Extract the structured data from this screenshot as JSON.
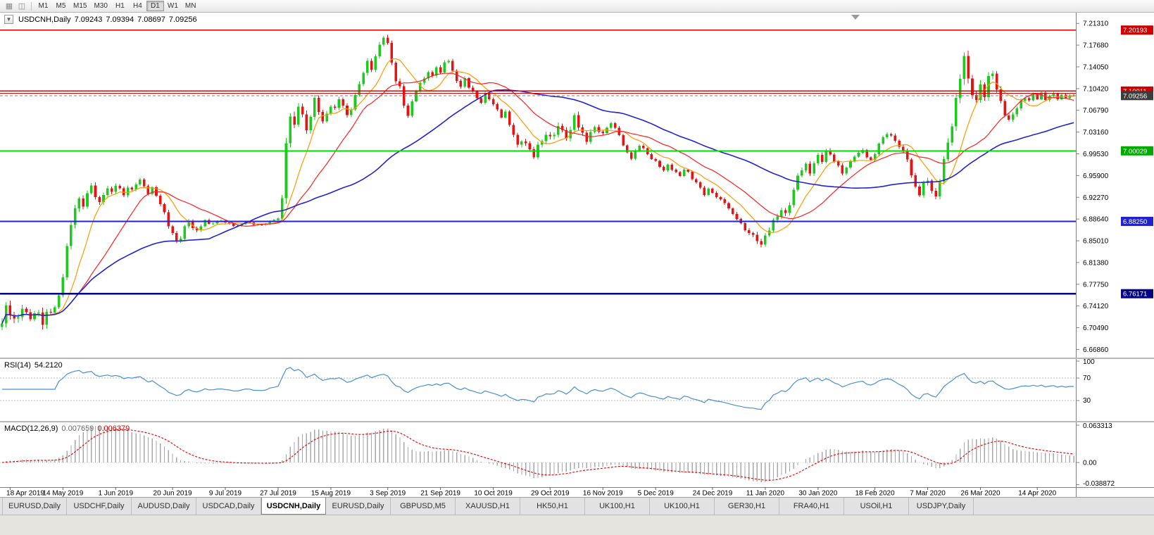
{
  "colors": {
    "up": "#1fca1f",
    "down": "#e41414",
    "ma_fast": "#ff9900",
    "ma_mid": "#ff2020",
    "ma_slow": "#2424cc",
    "rsi": "#4a8fd0",
    "rsi_level": "#bbbbbb",
    "macd_hist": "#a8a8a8",
    "macd_signal": "#e00000",
    "axis_text": "#000000",
    "axis_line": "#808080"
  },
  "toolbar": {
    "icons": [
      {
        "name": "chart-grid-icon",
        "glyph": "▦"
      },
      {
        "name": "chart-window-icon",
        "glyph": "◫"
      }
    ],
    "timeframes": [
      {
        "label": "M1",
        "active": false
      },
      {
        "label": "M5",
        "active": false
      },
      {
        "label": "M15",
        "active": false
      },
      {
        "label": "M30",
        "active": false
      },
      {
        "label": "H1",
        "active": false
      },
      {
        "label": "H4",
        "active": false
      },
      {
        "label": "D1",
        "active": true
      },
      {
        "label": "W1",
        "active": false
      },
      {
        "label": "MN",
        "active": false
      }
    ]
  },
  "chart": {
    "header": {
      "collapse_glyph": "▼",
      "symbol": "USDCNH,Daily",
      "open": "7.09243",
      "high": "7.09394",
      "low": "7.08697",
      "close": "7.09256"
    }
  },
  "price_axis": {
    "ticks": [
      "7.21310",
      "7.17680",
      "7.14050",
      "7.10420",
      "7.06790",
      "7.03160",
      "6.99530",
      "6.95900",
      "6.92270",
      "6.88640",
      "6.85010",
      "6.81380",
      "6.77750",
      "6.74120",
      "6.70490",
      "6.66860"
    ],
    "badges": [
      {
        "label": "7.20193",
        "price": 7.20193,
        "color": "#cc0000"
      },
      {
        "label": "7.10011",
        "price": 7.10011,
        "color": "#cc0000"
      },
      {
        "label": "7.09256",
        "price": 7.09256,
        "color": "#3c3c3c"
      },
      {
        "label": "7.00029",
        "price": 7.00029,
        "color": "#00a800"
      },
      {
        "label": "6.88250",
        "price": 6.8825,
        "color": "#2222cc"
      },
      {
        "label": "6.76171",
        "price": 6.76171,
        "color": "#000088"
      }
    ]
  },
  "hlines": [
    {
      "price": 7.20193,
      "color": "#dd0000",
      "width": 1.4
    },
    {
      "price": 7.10011,
      "color": "#dd0000",
      "width": 1.4
    },
    {
      "price": 7.0965,
      "color": "#dd0000",
      "width": 1.0
    },
    {
      "price": 7.00029,
      "color": "#00dd00",
      "width": 2.0
    },
    {
      "price": 6.8825,
      "color": "#2222dd",
      "width": 1.6
    },
    {
      "price": 6.76171,
      "color": "#000088",
      "width": 2.4
    }
  ],
  "current_price_line": {
    "price": 7.09256,
    "color": "#808080"
  },
  "rsi": {
    "label": "RSI(14)",
    "value": "54.2120",
    "ticks": [
      {
        "label": "100",
        "value": 100
      },
      {
        "label": "70",
        "value": 70
      },
      {
        "label": "30",
        "value": 30
      }
    ],
    "levels": [
      70,
      30
    ],
    "range": [
      0,
      100
    ]
  },
  "macd": {
    "label": "MACD(12,26,9)",
    "main_value": "0.007659",
    "signal_value": "0.006379",
    "ticks": [
      {
        "label": "0.063313",
        "value": 0.063313
      },
      {
        "label": "0.00",
        "value": 0
      },
      {
        "label": "-0.038872",
        "value": -0.038872
      }
    ]
  },
  "chart_data": {
    "type": "candlestick",
    "symbol": "USDCNH",
    "timeframe": "Daily",
    "n_candles": 265,
    "last_close": 7.09256,
    "y_range": [
      6.655,
      7.231
    ],
    "overlays": [
      {
        "name": "ma-fast",
        "period": 9,
        "color_key": "ma_fast"
      },
      {
        "name": "ma-mid",
        "period": 20,
        "color_key": "ma_mid"
      },
      {
        "name": "ma-slow",
        "period": 52,
        "color_key": "ma_slow"
      }
    ],
    "x_labels": [
      {
        "index": 2,
        "label": "18 Apr 2019"
      },
      {
        "index": 15,
        "label": "14 May 2019"
      },
      {
        "index": 28,
        "label": "1 Jun 2019"
      },
      {
        "index": 42,
        "label": "20 Jun 2019"
      },
      {
        "index": 55,
        "label": "9 Jul 2019"
      },
      {
        "index": 68,
        "label": "27 Jul 2019"
      },
      {
        "index": 81,
        "label": "15 Aug 2019"
      },
      {
        "index": 95,
        "label": "3 Sep 2019"
      },
      {
        "index": 108,
        "label": "21 Sep 2019"
      },
      {
        "index": 121,
        "label": "10 Oct 2019"
      },
      {
        "index": 135,
        "label": "29 Oct 2019"
      },
      {
        "index": 148,
        "label": "16 Nov 2019"
      },
      {
        "index": 161,
        "label": "5 Dec 2019"
      },
      {
        "index": 175,
        "label": "24 Dec 2019"
      },
      {
        "index": 188,
        "label": "11 Jan 2020"
      },
      {
        "index": 201,
        "label": "30 Jan 2020"
      },
      {
        "index": 215,
        "label": "18 Feb 2020"
      },
      {
        "index": 228,
        "label": "7 Mar 2020"
      },
      {
        "index": 241,
        "label": "26 Mar 2020"
      },
      {
        "index": 255,
        "label": "14 Apr 2020"
      }
    ],
    "close_waypoints": [
      [
        0,
        6.708
      ],
      [
        1,
        6.742
      ],
      [
        3,
        6.716
      ],
      [
        5,
        6.736
      ],
      [
        7,
        6.722
      ],
      [
        9,
        6.731
      ],
      [
        10,
        6.712
      ],
      [
        11,
        6.728
      ],
      [
        13,
        6.738
      ],
      [
        14,
        6.758
      ],
      [
        15,
        6.792
      ],
      [
        16,
        6.838
      ],
      [
        17,
        6.878
      ],
      [
        18,
        6.905
      ],
      [
        19,
        6.918
      ],
      [
        20,
        6.91
      ],
      [
        21,
        6.928
      ],
      [
        22,
        6.942
      ],
      [
        23,
        6.925
      ],
      [
        24,
        6.912
      ],
      [
        25,
        6.928
      ],
      [
        26,
        6.938
      ],
      [
        27,
        6.93
      ],
      [
        28,
        6.944
      ],
      [
        29,
        6.936
      ],
      [
        30,
        6.926
      ],
      [
        31,
        6.94
      ],
      [
        32,
        6.934
      ],
      [
        33,
        6.946
      ],
      [
        34,
        6.952
      ],
      [
        35,
        6.94
      ],
      [
        36,
        6.93
      ],
      [
        37,
        6.938
      ],
      [
        38,
        6.926
      ],
      [
        39,
        6.912
      ],
      [
        40,
        6.896
      ],
      [
        41,
        6.876
      ],
      [
        42,
        6.862
      ],
      [
        43,
        6.848
      ],
      [
        44,
        6.856
      ],
      [
        45,
        6.872
      ],
      [
        46,
        6.884
      ],
      [
        47,
        6.872
      ],
      [
        48,
        6.866
      ],
      [
        49,
        6.876
      ],
      [
        50,
        6.884
      ],
      [
        51,
        6.878
      ],
      [
        52,
        6.88
      ],
      [
        54,
        6.884
      ],
      [
        56,
        6.878
      ],
      [
        58,
        6.874
      ],
      [
        60,
        6.882
      ],
      [
        62,
        6.878
      ],
      [
        64,
        6.876
      ],
      [
        66,
        6.882
      ],
      [
        68,
        6.888
      ],
      [
        69,
        6.918
      ],
      [
        70,
        7.018
      ],
      [
        71,
        7.056
      ],
      [
        72,
        7.042
      ],
      [
        73,
        7.078
      ],
      [
        74,
        7.058
      ],
      [
        75,
        7.036
      ],
      [
        76,
        7.058
      ],
      [
        77,
        7.086
      ],
      [
        78,
        7.068
      ],
      [
        79,
        7.048
      ],
      [
        80,
        7.062
      ],
      [
        81,
        7.076
      ],
      [
        82,
        7.07
      ],
      [
        83,
        7.088
      ],
      [
        84,
        7.076
      ],
      [
        85,
        7.058
      ],
      [
        86,
        7.072
      ],
      [
        87,
        7.092
      ],
      [
        88,
        7.112
      ],
      [
        89,
        7.132
      ],
      [
        90,
        7.148
      ],
      [
        91,
        7.138
      ],
      [
        92,
        7.158
      ],
      [
        93,
        7.176
      ],
      [
        94,
        7.192
      ],
      [
        95,
        7.178
      ],
      [
        96,
        7.148
      ],
      [
        97,
        7.118
      ],
      [
        98,
        7.106
      ],
      [
        99,
        7.078
      ],
      [
        100,
        7.058
      ],
      [
        101,
        7.082
      ],
      [
        102,
        7.102
      ],
      [
        103,
        7.112
      ],
      [
        104,
        7.122
      ],
      [
        105,
        7.132
      ],
      [
        106,
        7.124
      ],
      [
        107,
        7.142
      ],
      [
        108,
        7.13
      ],
      [
        109,
        7.148
      ],
      [
        110,
        7.152
      ],
      [
        111,
        7.132
      ],
      [
        112,
        7.118
      ],
      [
        113,
        7.108
      ],
      [
        114,
        7.12
      ],
      [
        115,
        7.108
      ],
      [
        116,
        7.098
      ],
      [
        117,
        7.088
      ],
      [
        118,
        7.082
      ],
      [
        119,
        7.094
      ],
      [
        120,
        7.088
      ],
      [
        121,
        7.078
      ],
      [
        122,
        7.068
      ],
      [
        123,
        7.058
      ],
      [
        124,
        7.064
      ],
      [
        125,
        7.044
      ],
      [
        126,
        7.028
      ],
      [
        127,
        7.008
      ],
      [
        128,
        7.018
      ],
      [
        129,
        7.012
      ],
      [
        130,
        7.002
      ],
      [
        131,
        6.992
      ],
      [
        132,
        7.008
      ],
      [
        133,
        7.018
      ],
      [
        134,
        7.028
      ],
      [
        135,
        7.022
      ],
      [
        136,
        7.03
      ],
      [
        137,
        7.04
      ],
      [
        138,
        7.034
      ],
      [
        139,
        7.024
      ],
      [
        140,
        7.032
      ],
      [
        141,
        7.062
      ],
      [
        142,
        7.04
      ],
      [
        143,
        7.028
      ],
      [
        144,
        7.018
      ],
      [
        145,
        7.03
      ],
      [
        146,
        7.04
      ],
      [
        147,
        7.034
      ],
      [
        148,
        7.028
      ],
      [
        149,
        7.04
      ],
      [
        150,
        7.046
      ],
      [
        151,
        7.038
      ],
      [
        152,
        7.028
      ],
      [
        153,
        7.008
      ],
      [
        154,
        6.998
      ],
      [
        155,
        6.988
      ],
      [
        156,
        7.0
      ],
      [
        157,
        7.01
      ],
      [
        158,
        7.004
      ],
      [
        159,
        6.994
      ],
      [
        160,
        6.988
      ],
      [
        161,
        6.982
      ],
      [
        162,
        6.974
      ],
      [
        163,
        6.968
      ],
      [
        164,
        6.976
      ],
      [
        165,
        6.97
      ],
      [
        166,
        6.964
      ],
      [
        167,
        6.958
      ],
      [
        168,
        6.97
      ],
      [
        169,
        6.964
      ],
      [
        170,
        6.954
      ],
      [
        171,
        6.948
      ],
      [
        172,
        6.938
      ],
      [
        173,
        6.928
      ],
      [
        174,
        6.936
      ],
      [
        175,
        6.93
      ],
      [
        176,
        6.924
      ],
      [
        177,
        6.918
      ],
      [
        178,
        6.914
      ],
      [
        179,
        6.904
      ],
      [
        180,
        6.894
      ],
      [
        181,
        6.888
      ],
      [
        182,
        6.878
      ],
      [
        183,
        6.868
      ],
      [
        184,
        6.864
      ],
      [
        185,
        6.858
      ],
      [
        186,
        6.852
      ],
      [
        187,
        6.843
      ],
      [
        188,
        6.858
      ],
      [
        189,
        6.87
      ],
      [
        190,
        6.882
      ],
      [
        191,
        6.892
      ],
      [
        192,
        6.902
      ],
      [
        193,
        6.894
      ],
      [
        194,
        6.912
      ],
      [
        195,
        6.934
      ],
      [
        196,
        6.958
      ],
      [
        197,
        6.97
      ],
      [
        198,
        6.976
      ],
      [
        199,
        6.964
      ],
      [
        200,
        6.98
      ],
      [
        201,
        6.992
      ],
      [
        202,
        6.984
      ],
      [
        203,
        7.0
      ],
      [
        204,
        6.994
      ],
      [
        205,
        6.984
      ],
      [
        206,
        6.974
      ],
      [
        207,
        6.964
      ],
      [
        208,
        6.972
      ],
      [
        209,
        6.982
      ],
      [
        210,
        6.992
      ],
      [
        211,
        6.996
      ],
      [
        212,
        7.002
      ],
      [
        213,
        6.99
      ],
      [
        214,
        6.984
      ],
      [
        215,
        6.996
      ],
      [
        216,
        7.012
      ],
      [
        217,
        7.022
      ],
      [
        218,
        7.03
      ],
      [
        219,
        7.024
      ],
      [
        220,
        7.018
      ],
      [
        221,
        7.008
      ],
      [
        222,
        6.998
      ],
      [
        223,
        6.988
      ],
      [
        224,
        6.958
      ],
      [
        225,
        6.94
      ],
      [
        226,
        6.928
      ],
      [
        227,
        6.944
      ],
      [
        228,
        6.952
      ],
      [
        229,
        6.934
      ],
      [
        230,
        6.922
      ],
      [
        231,
        6.952
      ],
      [
        232,
        6.984
      ],
      [
        233,
        7.014
      ],
      [
        234,
        7.044
      ],
      [
        235,
        7.084
      ],
      [
        236,
        7.124
      ],
      [
        237,
        7.158
      ],
      [
        238,
        7.118
      ],
      [
        239,
        7.098
      ],
      [
        240,
        7.082
      ],
      [
        241,
        7.112
      ],
      [
        242,
        7.092
      ],
      [
        243,
        7.122
      ],
      [
        244,
        7.132
      ],
      [
        245,
        7.102
      ],
      [
        246,
        7.082
      ],
      [
        247,
        7.062
      ],
      [
        248,
        7.05
      ],
      [
        249,
        7.062
      ],
      [
        250,
        7.072
      ],
      [
        251,
        7.082
      ],
      [
        252,
        7.09
      ],
      [
        253,
        7.084
      ],
      [
        254,
        7.094
      ],
      [
        255,
        7.088
      ],
      [
        256,
        7.096
      ],
      [
        257,
        7.086
      ],
      [
        258,
        7.092
      ],
      [
        259,
        7.095
      ],
      [
        260,
        7.088
      ],
      [
        261,
        7.093
      ],
      [
        262,
        7.088
      ],
      [
        263,
        7.094
      ],
      [
        264,
        7.09256
      ]
    ],
    "volatility_waypoints": [
      [
        0,
        0.03
      ],
      [
        4,
        0.022
      ],
      [
        8,
        0.016
      ],
      [
        10,
        0.026
      ],
      [
        13,
        0.012
      ],
      [
        16,
        0.02
      ],
      [
        22,
        0.016
      ],
      [
        30,
        0.012
      ],
      [
        38,
        0.01
      ],
      [
        44,
        0.014
      ],
      [
        52,
        0.006
      ],
      [
        60,
        0.005
      ],
      [
        68,
        0.007
      ],
      [
        70,
        0.03
      ],
      [
        74,
        0.02
      ],
      [
        82,
        0.013
      ],
      [
        90,
        0.014
      ],
      [
        95,
        0.016
      ],
      [
        103,
        0.011
      ],
      [
        112,
        0.011
      ],
      [
        122,
        0.01
      ],
      [
        131,
        0.016
      ],
      [
        141,
        0.02
      ],
      [
        150,
        0.009
      ],
      [
        160,
        0.008
      ],
      [
        172,
        0.008
      ],
      [
        183,
        0.01
      ],
      [
        187,
        0.016
      ],
      [
        195,
        0.016
      ],
      [
        203,
        0.012
      ],
      [
        214,
        0.008
      ],
      [
        224,
        0.014
      ],
      [
        230,
        0.016
      ],
      [
        235,
        0.026
      ],
      [
        237,
        0.03
      ],
      [
        241,
        0.022
      ],
      [
        248,
        0.014
      ],
      [
        255,
        0.009
      ],
      [
        264,
        0.007
      ]
    ]
  },
  "tabs": [
    {
      "label": "EURUSD,Daily",
      "active": false
    },
    {
      "label": "USDCHF,Daily",
      "active": false
    },
    {
      "label": "AUDUSD,Daily",
      "active": false
    },
    {
      "label": "USDCAD,Daily",
      "active": false
    },
    {
      "label": "USDCNH,Daily",
      "active": true
    },
    {
      "label": "EURUSD,Daily",
      "active": false
    },
    {
      "label": "GBPUSD,M5",
      "active": false
    },
    {
      "label": "XAUUSD,H1",
      "active": false
    },
    {
      "label": "HK50,H1",
      "active": false
    },
    {
      "label": "UK100,H1",
      "active": false
    },
    {
      "label": "UK100,H1",
      "active": false
    },
    {
      "label": "GER30,H1",
      "active": false
    },
    {
      "label": "FRA40,H1",
      "active": false
    },
    {
      "label": "USOil,H1",
      "active": false
    },
    {
      "label": "USDJPY,Daily",
      "active": false
    }
  ]
}
